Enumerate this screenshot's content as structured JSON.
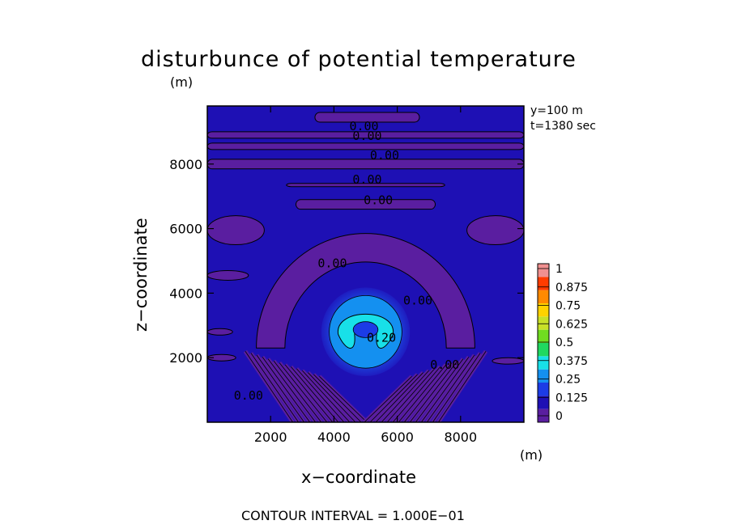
{
  "chart_data": {
    "type": "heatmap",
    "title": "disturbunce of potential temperature",
    "xlabel": "x−coordinate",
    "ylabel": "z−coordinate",
    "x_unit": "(m)",
    "y_unit": "(m)",
    "xlim": [
      0,
      10000
    ],
    "ylim": [
      0,
      9800
    ],
    "x_ticks": [
      2000,
      4000,
      6000,
      8000
    ],
    "y_ticks": [
      2000,
      4000,
      6000,
      8000
    ],
    "annotations": [
      "y=100 m",
      "t=1380 sec"
    ],
    "colorbar": {
      "ticks": [
        "0",
        "0.125",
        "0.25",
        "0.375",
        "0.5",
        "0.625",
        "0.75",
        "0.875",
        "1"
      ],
      "colors": [
        "#5a1ea0",
        "#1e10b4",
        "#1c3ce6",
        "#1490f0",
        "#18e0e8",
        "#20d860",
        "#70dc20",
        "#c8e028",
        "#ffd200",
        "#ff8a00",
        "#ff3c00",
        "#f09090"
      ]
    },
    "contour_labels": [
      {
        "text": "0.00",
        "x": 4950,
        "z": 9050
      },
      {
        "text": "0.00",
        "x": 5050,
        "z": 8750
      },
      {
        "text": "0.00",
        "x": 5600,
        "z": 8150
      },
      {
        "text": "0.00",
        "x": 5050,
        "z": 7400
      },
      {
        "text": "0.00",
        "x": 5400,
        "z": 6750
      },
      {
        "text": "0.00",
        "x": 3950,
        "z": 4800
      },
      {
        "text": "0.00",
        "x": 6650,
        "z": 3650
      },
      {
        "text": "0.20",
        "x": 5500,
        "z": 2500
      },
      {
        "text": "0.00",
        "x": 7500,
        "z": 1650
      },
      {
        "text": "0.00",
        "x": 1300,
        "z": 700
      }
    ],
    "features": [
      {
        "name": "warm bubble",
        "center_x": 5000,
        "center_z": 2800,
        "radius": 1400,
        "max_value": 0.3
      },
      {
        "name": "perturbation arch",
        "center_x": 5000,
        "center_z": 2300,
        "radius": 3000,
        "value": 0.0
      }
    ]
  },
  "footer": "CONTOUR INTERVAL = 1.000E−01"
}
